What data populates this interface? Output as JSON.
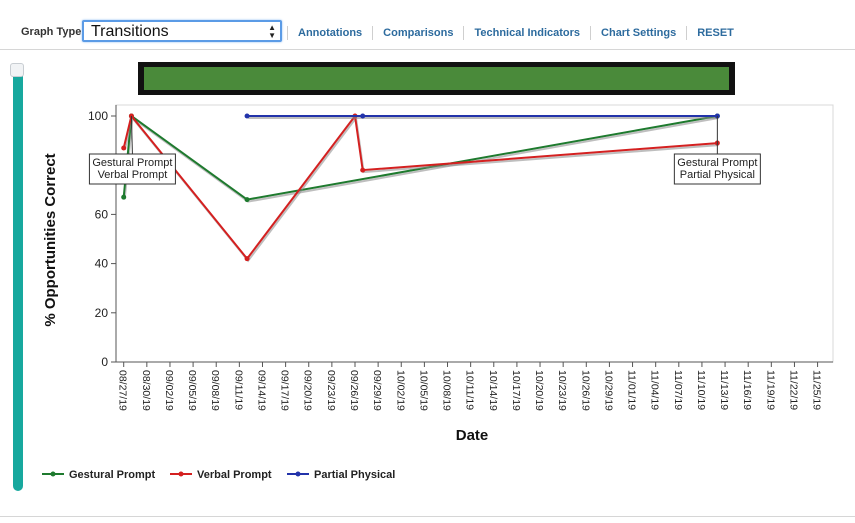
{
  "toolbar": {
    "graph_type_label": "Graph Type:",
    "graph_type_value": "Transitions",
    "links": [
      "Annotations",
      "Comparisons",
      "Technical Indicators",
      "Chart Settings",
      "RESET"
    ]
  },
  "colors": {
    "gestural": "#1e7a2e",
    "verbal": "#d42020",
    "partial": "#2233aa",
    "header_bar_fill": "#4a8a3a",
    "slider": "#17a89e"
  },
  "chart_data": {
    "type": "line",
    "xlabel": "Date",
    "ylabel": "% Opportunities Correct",
    "ylim": [
      0,
      100
    ],
    "y_ticks": [
      0,
      20,
      40,
      60,
      80,
      100
    ],
    "x_range": [
      "2019-08-26",
      "2019-11-27"
    ],
    "x_ticks": [
      "08/27/19",
      "08/30/19",
      "09/02/19",
      "09/05/19",
      "09/08/19",
      "09/11/19",
      "09/14/19",
      "09/17/19",
      "09/20/19",
      "09/23/19",
      "09/26/19",
      "09/29/19",
      "10/02/19",
      "10/05/19",
      "10/08/19",
      "10/11/19",
      "10/14/19",
      "10/17/19",
      "10/20/19",
      "10/23/19",
      "10/26/19",
      "10/29/19",
      "11/01/19",
      "11/04/19",
      "11/07/19",
      "11/10/19",
      "11/13/19",
      "11/16/19",
      "11/19/19",
      "11/22/19",
      "11/25/19"
    ],
    "grid": false,
    "legend_position": "bottom-left",
    "series": [
      {
        "name": "Gestural Prompt",
        "points": [
          [
            "2019-08-27",
            67
          ],
          [
            "2019-08-28",
            100
          ],
          [
            "2019-09-12",
            66
          ],
          [
            "2019-11-12",
            100
          ]
        ]
      },
      {
        "name": "Verbal Prompt",
        "points": [
          [
            "2019-08-27",
            87
          ],
          [
            "2019-08-28",
            100
          ],
          [
            "2019-09-12",
            42
          ],
          [
            "2019-09-26",
            100
          ],
          [
            "2019-09-27",
            78
          ],
          [
            "2019-11-12",
            89
          ]
        ]
      },
      {
        "name": "Partial Physical",
        "points": [
          [
            "2019-09-12",
            100
          ],
          [
            "2019-09-27",
            100
          ],
          [
            "2019-11-12",
            100
          ]
        ]
      }
    ],
    "annotations": [
      {
        "lines": [
          "Gestural Prompt",
          "Verbal Prompt"
        ],
        "date": "2019-08-28",
        "y": 100,
        "placement": "below-left"
      },
      {
        "lines": [
          "Gestural Prompt",
          "Partial Physical"
        ],
        "date": "2019-11-12",
        "y": 100,
        "placement": "below"
      }
    ]
  }
}
